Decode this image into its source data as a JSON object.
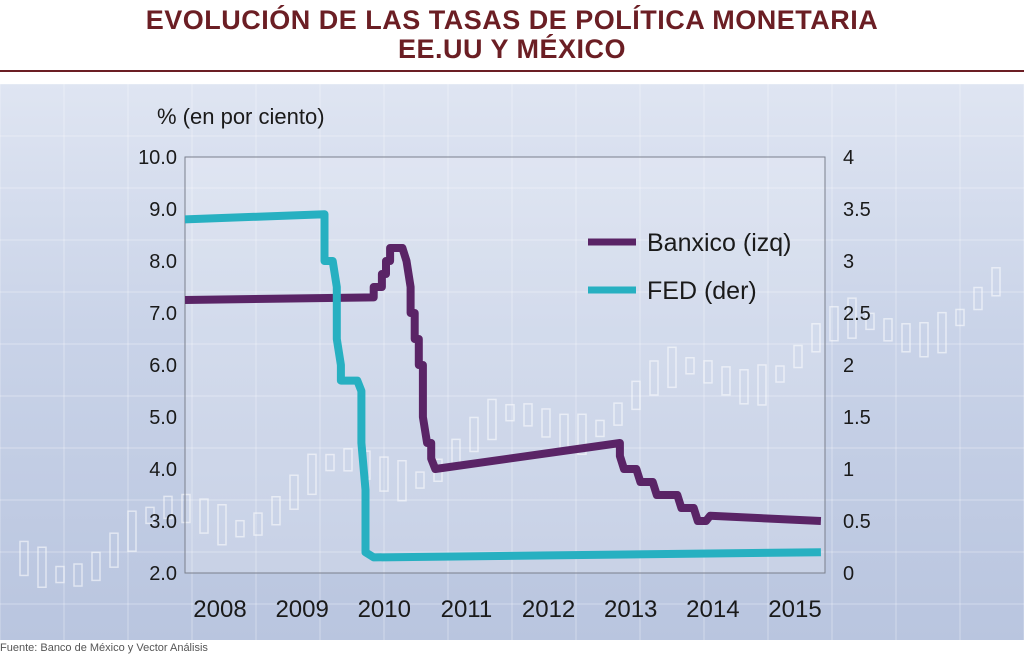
{
  "title": {
    "line1": "EVOLUCIÓN DE LAS TASAS DE POLÍTICA MONETARIA",
    "line2": "EE.UU Y MÉXICO"
  },
  "source": "Fuente: Banco de México y Vector Análisis",
  "colors": {
    "banxico": "#5a2466",
    "fed": "#27b0c1",
    "title": "#6b1e24"
  },
  "chart_data": {
    "type": "line",
    "ylabel_left": "%  (en por ciento)",
    "xlim": [
      2008.0,
      2015.8
    ],
    "ylim_left": [
      2.0,
      10.0
    ],
    "ylim_right": [
      0,
      4
    ],
    "left_ticks": [
      "10.0",
      "9.0",
      "8.0",
      "7.0",
      "6.0",
      "5.0",
      "4.0",
      "3.0",
      "2.0"
    ],
    "right_ticks": [
      "4",
      "3.5",
      "3",
      "2.5",
      "2",
      "1.5",
      "1",
      "0.5",
      "0"
    ],
    "x_ticks": [
      "2008",
      "2009",
      "2010",
      "2011",
      "2012",
      "2013",
      "2014",
      "2015"
    ],
    "legend_position": "top-right",
    "series": [
      {
        "name": "Banxico (izq)",
        "axis": "left",
        "points": [
          [
            2008.0,
            7.25
          ],
          [
            2010.3,
            7.3
          ],
          [
            2010.3,
            7.5
          ],
          [
            2010.4,
            7.5
          ],
          [
            2010.4,
            7.75
          ],
          [
            2010.45,
            7.75
          ],
          [
            2010.45,
            8.0
          ],
          [
            2010.5,
            8.0
          ],
          [
            2010.5,
            8.25
          ],
          [
            2010.6,
            8.25
          ],
          [
            2010.65,
            8.25
          ],
          [
            2010.7,
            8.0
          ],
          [
            2010.75,
            7.5
          ],
          [
            2010.75,
            7.0
          ],
          [
            2010.8,
            7.0
          ],
          [
            2010.8,
            6.5
          ],
          [
            2010.85,
            6.5
          ],
          [
            2010.85,
            6.0
          ],
          [
            2010.9,
            6.0
          ],
          [
            2010.9,
            5.0
          ],
          [
            2010.95,
            4.5
          ],
          [
            2011.0,
            4.5
          ],
          [
            2011.0,
            4.2
          ],
          [
            2011.05,
            4.0
          ],
          [
            2013.3,
            4.5
          ],
          [
            2013.3,
            4.25
          ],
          [
            2013.35,
            4.0
          ],
          [
            2013.5,
            4.0
          ],
          [
            2013.55,
            3.75
          ],
          [
            2013.7,
            3.75
          ],
          [
            2013.75,
            3.5
          ],
          [
            2014.0,
            3.5
          ],
          [
            2014.05,
            3.25
          ],
          [
            2014.2,
            3.25
          ],
          [
            2014.25,
            3.0
          ],
          [
            2014.35,
            3.0
          ],
          [
            2014.4,
            3.1
          ],
          [
            2015.75,
            3.0
          ]
        ]
      },
      {
        "name": "FED (der)",
        "axis": "right",
        "points": [
          [
            2008.0,
            3.4
          ],
          [
            2009.7,
            3.45
          ],
          [
            2009.7,
            3.0
          ],
          [
            2009.8,
            3.0
          ],
          [
            2009.85,
            2.75
          ],
          [
            2009.85,
            2.25
          ],
          [
            2009.9,
            2.0
          ],
          [
            2009.9,
            1.85
          ],
          [
            2010.1,
            1.85
          ],
          [
            2010.15,
            1.75
          ],
          [
            2010.15,
            1.25
          ],
          [
            2010.2,
            0.8
          ],
          [
            2010.2,
            0.2
          ],
          [
            2010.3,
            0.15
          ],
          [
            2015.75,
            0.2
          ]
        ]
      }
    ]
  }
}
